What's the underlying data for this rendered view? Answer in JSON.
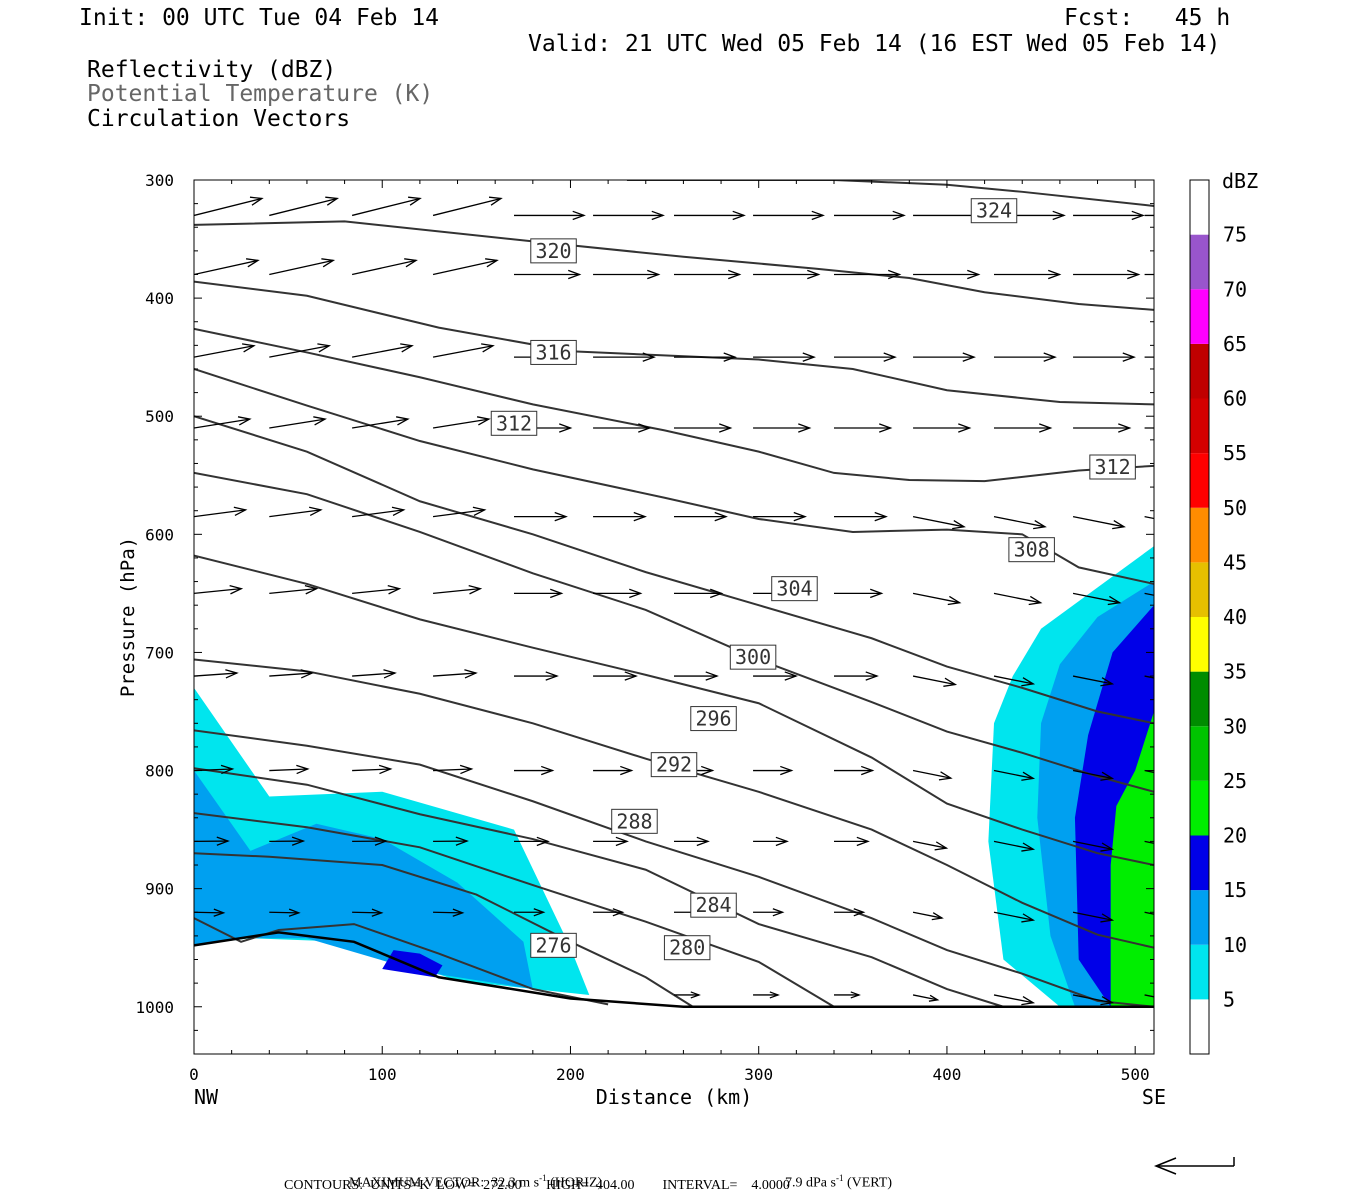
{
  "header": {
    "init": "Init: 00 UTC Tue 04 Feb 14",
    "fcst": "Fcst:   45 h",
    "valid": "Valid: 21 UTC Wed 05 Feb 14 (16 EST Wed 05 Feb 14)",
    "field1": "Reflectivity (dBZ)",
    "field2": "Potential Temperature (K)",
    "field3": "Circulation Vectors"
  },
  "footer": {
    "max_vector_label": "MAXIMUM VECTOR:",
    "max_vector_horiz": "32.3 m s",
    "horiz_sup": "-1",
    "horiz_tail": " (HORIZ)",
    "max_vector_vert": "7.9 dPa s",
    "vert_sup": "-1",
    "vert_tail": " (VERT)",
    "contours": "CONTOURS:  UNITS=K  LOW=  272.00       HIGH=  404.00        INTERVAL=    4.0000"
  },
  "chart_data": {
    "type": "contour",
    "xlabel": "Distance (km)",
    "ylabel": "Pressure (hPa)",
    "xlim": [
      0,
      510
    ],
    "ylim": [
      1040,
      300
    ],
    "x_ticks": [
      0,
      100,
      200,
      300,
      400,
      500
    ],
    "y_ticks": [
      300,
      400,
      500,
      600,
      700,
      800,
      900,
      1000
    ],
    "x_end_left": "NW",
    "x_end_right": "SE",
    "colorbar": {
      "title": "dBZ",
      "levels": [
        5,
        10,
        15,
        20,
        25,
        30,
        35,
        40,
        45,
        50,
        55,
        60,
        65,
        70,
        75
      ],
      "colors": [
        "#00e5ee",
        "#00a0f0",
        "#0000e8",
        "#00ee00",
        "#00c400",
        "#008c00",
        "#ffff00",
        "#e6c000",
        "#ff8c00",
        "#ff0000",
        "#d40000",
        "#c00000",
        "#ff00ff",
        "#9955cc",
        "#ffffff"
      ]
    },
    "theta_labels": [
      {
        "value": "324",
        "x": 425,
        "p": 326
      },
      {
        "value": "320",
        "x": 191,
        "p": 360
      },
      {
        "value": "316",
        "x": 191,
        "p": 446
      },
      {
        "value": "312",
        "x": 170,
        "p": 506
      },
      {
        "value": "312",
        "x": 488,
        "p": 543
      },
      {
        "value": "308",
        "x": 445,
        "p": 613
      },
      {
        "value": "304",
        "x": 319,
        "p": 646
      },
      {
        "value": "300",
        "x": 297,
        "p": 704
      },
      {
        "value": "296",
        "x": 276,
        "p": 756
      },
      {
        "value": "292",
        "x": 255,
        "p": 795
      },
      {
        "value": "288",
        "x": 234,
        "p": 843
      },
      {
        "value": "284",
        "x": 276,
        "p": 914
      },
      {
        "value": "280",
        "x": 262,
        "p": 950
      },
      {
        "value": "276",
        "x": 191,
        "p": 948
      }
    ],
    "theta_contours": [
      {
        "x": [
          230,
          340,
          400,
          440,
          510
        ],
        "p": [
          300,
          300,
          304,
          310,
          322
        ]
      },
      {
        "x": [
          0,
          80,
          180,
          260,
          330,
          380,
          420,
          470,
          510
        ],
        "p": [
          338,
          335,
          352,
          365,
          375,
          383,
          395,
          405,
          410
        ]
      },
      {
        "x": [
          0,
          60,
          130,
          200,
          300,
          350,
          400,
          460,
          510
        ],
        "p": [
          386,
          398,
          425,
          445,
          452,
          460,
          478,
          488,
          490
        ]
      },
      {
        "x": [
          0,
          60,
          120,
          180,
          250,
          300,
          340,
          380,
          420,
          470,
          510
        ],
        "p": [
          426,
          446,
          467,
          490,
          512,
          530,
          548,
          554,
          555,
          546,
          542
        ]
      },
      {
        "x": [
          0,
          60,
          120,
          180,
          250,
          300,
          350,
          400,
          440,
          470,
          510
        ],
        "p": [
          460,
          491,
          521,
          545,
          569,
          587,
          598,
          596,
          600,
          628,
          642
        ]
      },
      {
        "x": [
          0,
          60,
          120,
          180,
          240,
          300,
          360,
          400,
          440,
          480,
          510
        ],
        "p": [
          500,
          530,
          572,
          600,
          632,
          660,
          688,
          712,
          730,
          750,
          760
        ]
      },
      {
        "x": [
          0,
          60,
          120,
          180,
          240,
          300,
          360,
          400,
          440,
          480,
          510
        ],
        "p": [
          548,
          566,
          598,
          633,
          664,
          706,
          742,
          767,
          785,
          805,
          818
        ]
      },
      {
        "x": [
          0,
          60,
          120,
          180,
          240,
          300,
          360,
          400,
          440,
          480,
          510
        ],
        "p": [
          618,
          642,
          672,
          696,
          719,
          743,
          789,
          828,
          850,
          870,
          880
        ]
      },
      {
        "x": [
          0,
          60,
          120,
          180,
          240,
          300,
          360,
          400,
          440,
          480,
          510
        ],
        "p": [
          706,
          716,
          735,
          760,
          790,
          818,
          850,
          880,
          912,
          939,
          950
        ]
      },
      {
        "x": [
          0,
          60,
          120,
          180,
          240,
          300,
          360,
          400,
          440,
          480,
          510
        ],
        "p": [
          766,
          779,
          795,
          826,
          860,
          890,
          925,
          952,
          972,
          995,
          1000
        ]
      },
      {
        "x": [
          0,
          60,
          120,
          180,
          240,
          300,
          360,
          400,
          430
        ],
        "p": [
          798,
          812,
          837,
          858,
          884,
          930,
          958,
          985,
          1000
        ]
      },
      {
        "x": [
          0,
          60,
          120,
          180,
          240,
          300,
          340
        ],
        "p": [
          836,
          848,
          865,
          897,
          928,
          962,
          1000
        ]
      },
      {
        "x": [
          0,
          40,
          100,
          150,
          200,
          240,
          265
        ],
        "p": [
          870,
          873,
          880,
          905,
          945,
          975,
          1000
        ]
      },
      {
        "x": [
          0,
          25,
          45,
          85,
          130,
          180,
          220
        ],
        "p": [
          925,
          945,
          935,
          930,
          955,
          985,
          998
        ]
      }
    ],
    "vector_rows_p": [
      330,
      380,
      450,
      510,
      585,
      650,
      720,
      800,
      860,
      920,
      990
    ],
    "terrain": {
      "x": [
        0,
        45,
        85,
        130,
        200,
        260,
        510
      ],
      "p": [
        948,
        937,
        945,
        975,
        993,
        1000,
        1000
      ]
    },
    "reflectivity_regions": [
      {
        "dbz": 5,
        "x": [
          0,
          40,
          100,
          170,
          200,
          210,
          140,
          80,
          30,
          0
        ],
        "p": [
          730,
          822,
          818,
          850,
          950,
          990,
          978,
          945,
          942,
          948
        ]
      },
      {
        "dbz": 10,
        "x": [
          0,
          30,
          65,
          100,
          140,
          175,
          180,
          120,
          60,
          20,
          0
        ],
        "p": [
          800,
          868,
          845,
          858,
          895,
          945,
          985,
          970,
          942,
          942,
          948
        ]
      },
      {
        "dbz": 15,
        "x": [
          100,
          128,
          132,
          120,
          106
        ],
        "p": [
          968,
          975,
          965,
          955,
          952
        ]
      },
      {
        "dbz": 5,
        "x": [
          510,
          510,
          460,
          430,
          422,
          425,
          435,
          450,
          510
        ],
        "p": [
          610,
          1000,
          1000,
          960,
          860,
          760,
          720,
          680,
          610
        ]
      },
      {
        "dbz": 10,
        "x": [
          510,
          510,
          468,
          455,
          448,
          450,
          460,
          480,
          510
        ],
        "p": [
          640,
          1000,
          1000,
          940,
          840,
          760,
          710,
          670,
          640
        ]
      },
      {
        "dbz": 15,
        "x": [
          510,
          510,
          487,
          470,
          468,
          475,
          488,
          510
        ],
        "p": [
          660,
          1000,
          1000,
          960,
          840,
          770,
          700,
          660
        ]
      },
      {
        "dbz": 20,
        "x": [
          510,
          510,
          487,
          487,
          490,
          500,
          510
        ],
        "p": [
          750,
          1000,
          1000,
          880,
          830,
          800,
          750
        ]
      }
    ]
  }
}
